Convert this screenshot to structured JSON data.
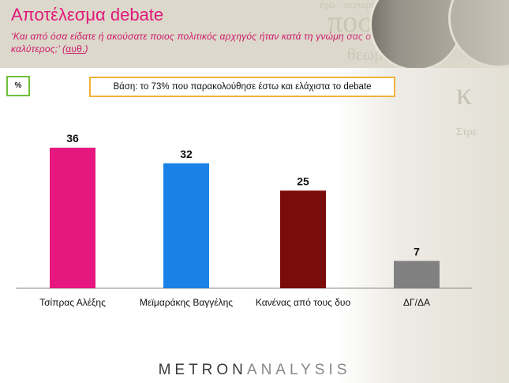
{
  "header": {
    "title": "Αποτέλεσμα debate",
    "question": "‘Και από όσα είδατε ή ακούσατε ποιος πολιτικός αρχηγός ήταν κατά τη γνώμη σας ο καλύτερος;’ (",
    "question_link": "αυθ.",
    "question_end": ")"
  },
  "badges": {
    "unit": "%",
    "base": "Βάση: το 73% που παρακολούθησε έστω και ελάχιστα το debate"
  },
  "footer": {
    "brand_part1": "METRON",
    "brand_part2": "ANALYSIS"
  },
  "colors": {
    "title": "#e0197a",
    "header_bg": "#dcd8cb",
    "unit_border": "#6fbf3a",
    "base_border": "#f0b23a"
  },
  "chart_data": {
    "type": "bar",
    "categories": [
      "Τσίπρας Αλέξης",
      "Μεϊμαράκης Βαγγέλης",
      "Κανένας από τους δυο",
      "ΔΓ/ΔΑ"
    ],
    "values": [
      36,
      32,
      25,
      7
    ],
    "colors": [
      "#e6187f",
      "#1a82e6",
      "#7a0c0c",
      "#808080"
    ],
    "data_labels": [
      "36",
      "32",
      "25",
      "7"
    ],
    "ylim": [
      0,
      36
    ],
    "grid": false,
    "legend": "none"
  }
}
